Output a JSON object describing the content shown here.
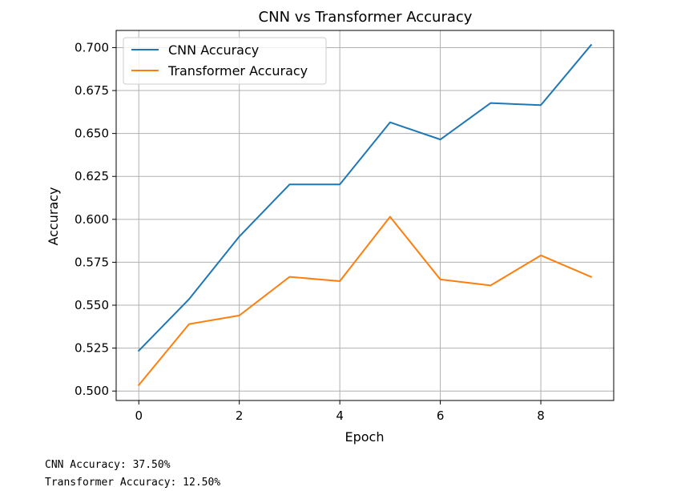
{
  "chart_data": {
    "type": "line",
    "title": "CNN vs Transformer Accuracy",
    "xlabel": "Epoch",
    "ylabel": "Accuracy",
    "xlim": [
      -0.45,
      9.45
    ],
    "ylim": [
      0.4945,
      0.71
    ],
    "x": [
      0,
      1,
      2,
      3,
      4,
      5,
      6,
      7,
      8,
      9
    ],
    "xticks": [
      0,
      2,
      4,
      6,
      8
    ],
    "xtick_labels": [
      "0",
      "2",
      "4",
      "6",
      "8"
    ],
    "yticks": [
      0.5,
      0.525,
      0.55,
      0.575,
      0.6,
      0.625,
      0.65,
      0.675,
      0.7
    ],
    "ytick_labels": [
      "0.500",
      "0.525",
      "0.550",
      "0.575",
      "0.600",
      "0.625",
      "0.650",
      "0.675",
      "0.700"
    ],
    "grid": true,
    "legend_position": "top-left",
    "series": [
      {
        "name": "CNN Accuracy",
        "color": "#1f77b4",
        "values": [
          0.5235,
          0.5535,
          0.59,
          0.6203,
          0.6203,
          0.6565,
          0.6465,
          0.6677,
          0.6665,
          0.7015
        ]
      },
      {
        "name": "Transformer Accuracy",
        "color": "#ff7f0e",
        "values": [
          0.5035,
          0.539,
          0.544,
          0.5665,
          0.564,
          0.6015,
          0.565,
          0.5615,
          0.579,
          0.5665
        ]
      }
    ]
  },
  "output": {
    "cnn_line": "CNN Accuracy: 37.50%",
    "transformer_line": "Transformer Accuracy: 12.50%"
  }
}
